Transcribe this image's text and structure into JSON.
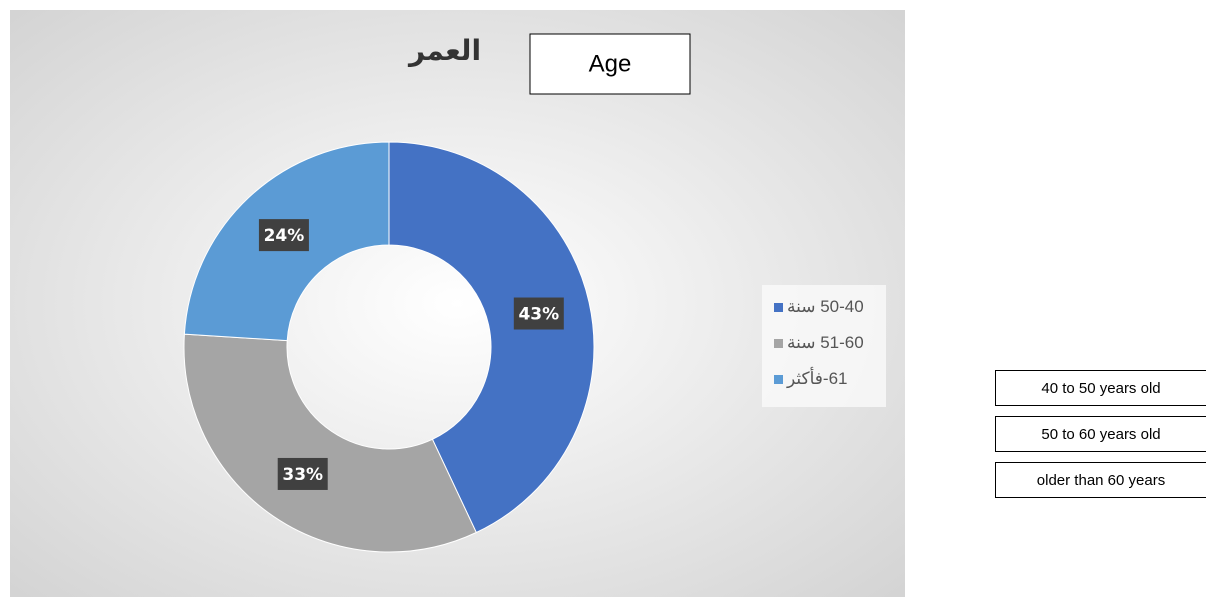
{
  "chart_data": {
    "type": "donut",
    "title": "العمر",
    "categories": [
      "50-40 سنة",
      "51-60 سنة",
      "61-فأكثر"
    ],
    "values": [
      43,
      33,
      24
    ],
    "value_labels": [
      "43%",
      "33%",
      "24%"
    ],
    "colors": [
      "#4472c4",
      "#a5a5a5",
      "#5b9bd5"
    ],
    "legend": "right"
  },
  "overlay": {
    "label": "Age",
    "translations": [
      "40 to 50 years old",
      "50 to 60 years old",
      "older than 60 years"
    ]
  }
}
